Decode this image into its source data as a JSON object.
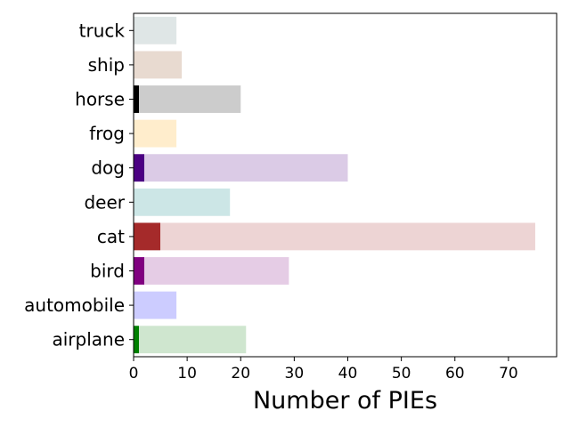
{
  "chart_data": {
    "type": "bar",
    "orientation": "horizontal",
    "stacked": true,
    "categories": [
      "airplane",
      "automobile",
      "bird",
      "cat",
      "deer",
      "dog",
      "frog",
      "horse",
      "ship",
      "truck"
    ],
    "series": [
      {
        "values": [
          1,
          0,
          2,
          5,
          0,
          2,
          0,
          1,
          0,
          0
        ],
        "colors": [
          "#008000",
          "#0000ff",
          "#800080",
          "#a52a2a",
          "#008080",
          "#4b0082",
          "#ffa500",
          "#000000",
          "#8b4513",
          "#2f4f4f"
        ]
      },
      {
        "values": [
          20,
          8,
          27,
          70,
          18,
          38,
          8,
          19,
          9,
          8
        ],
        "colors": [
          "#cfe6cf",
          "#ccccff",
          "#e5cce5",
          "#edd4d4",
          "#cce6e6",
          "#dbcbe6",
          "#ffedcc",
          "#cccccc",
          "#e8dad0",
          "#dfe6e6"
        ]
      }
    ],
    "xlabel": "Number of PIEs",
    "ylabel": "",
    "xlim": [
      0,
      79
    ],
    "xticks": [
      0,
      10,
      20,
      30,
      40,
      50,
      60,
      70
    ],
    "grid": false
  }
}
